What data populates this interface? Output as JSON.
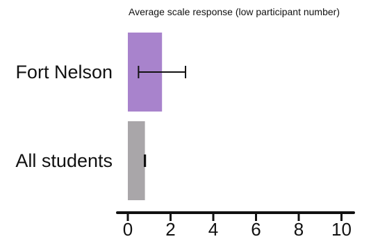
{
  "chart_data": {
    "type": "bar",
    "orientation": "horizontal",
    "title": "Average scale response (low participant number)",
    "xlabel": "",
    "ylabel": "",
    "categories": [
      "Fort Nelson",
      "All students"
    ],
    "values": [
      1.6,
      0.8
    ],
    "error_low": [
      0.5,
      0.78
    ],
    "error_high": [
      2.7,
      0.82
    ],
    "colors": [
      "#a883cc",
      "#a9a6a9"
    ],
    "xlim": [
      0,
      10
    ],
    "xticks": [
      0,
      2,
      4,
      6,
      8,
      10
    ],
    "grid": false,
    "legend": "none"
  }
}
